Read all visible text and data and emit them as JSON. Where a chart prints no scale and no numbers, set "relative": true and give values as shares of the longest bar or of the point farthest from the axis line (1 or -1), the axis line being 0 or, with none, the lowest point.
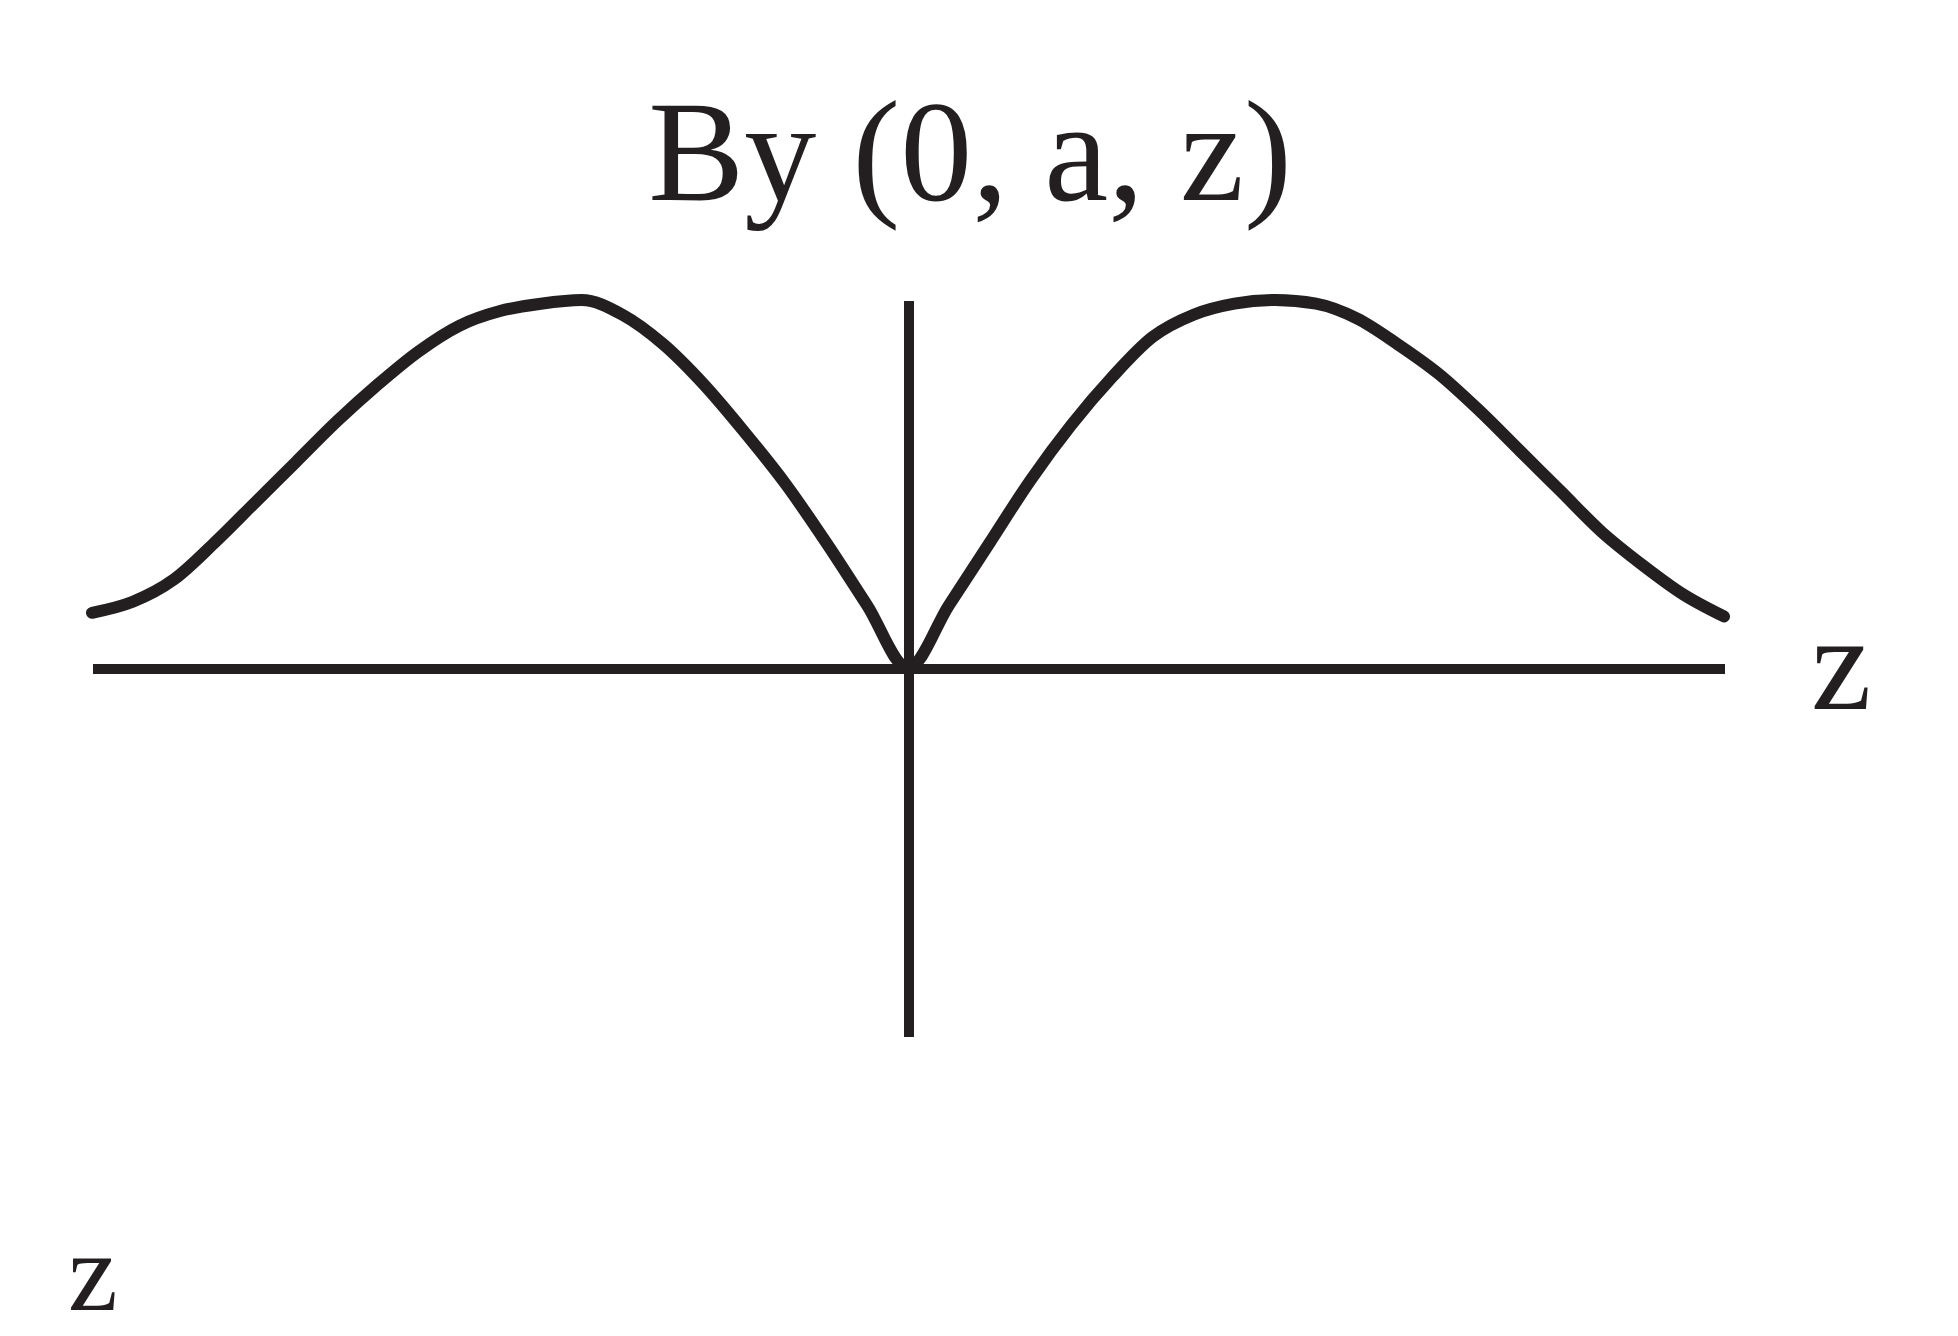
{
  "chart_data": {
    "type": "line",
    "title": "By (0, a, z)",
    "xlabel": "z",
    "annotations": [
      "z"
    ],
    "relative": true,
    "categories": [
      null,
      null,
      null,
      null,
      null,
      null,
      null,
      null,
      null,
      null,
      null,
      null,
      null,
      null,
      null,
      null,
      null,
      null,
      null,
      null,
      null,
      null,
      null,
      null,
      null,
      null,
      null,
      null,
      null,
      null,
      null,
      null,
      null,
      null,
      null,
      null,
      null,
      null,
      null,
      null,
      null
    ],
    "series": [
      {
        "color": "#231f20",
        "values": [
          0.15,
          0.18,
          0.24,
          0.34,
          0.45,
          0.56,
          0.67,
          0.77,
          0.86,
          0.93,
          0.97,
          0.99,
          1.0,
          0.96,
          0.88,
          0.77,
          0.64,
          0.5,
          0.34,
          0.17,
          0,
          0.17,
          0.34,
          0.51,
          0.66,
          0.79,
          0.9,
          0.96,
          0.99,
          1.0,
          0.99,
          0.95,
          0.88,
          0.8,
          0.7,
          0.59,
          0.48,
          0.37,
          0.28,
          0.2,
          0.14
        ]
      }
    ]
  }
}
